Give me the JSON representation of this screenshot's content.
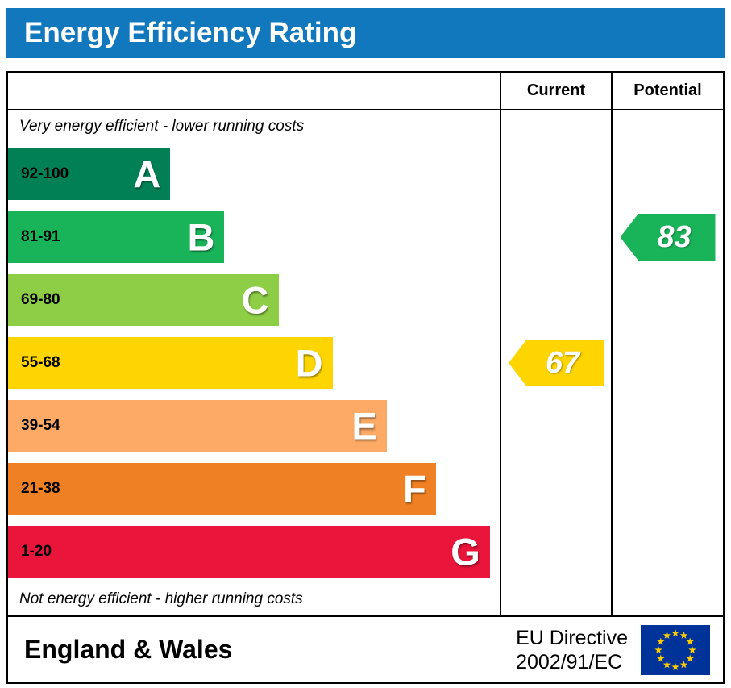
{
  "title": "Energy Efficiency Rating",
  "columns": {
    "current": "Current",
    "potential": "Potential"
  },
  "notes": {
    "top": "Very energy efficient - lower running costs",
    "bottom": "Not energy efficient - higher running costs"
  },
  "footer": {
    "region": "England & Wales",
    "directive_line1": "EU Directive",
    "directive_line2": "2002/91/EC",
    "flag_icon": "eu-flag"
  },
  "colors": {
    "header_blue": "#1278be",
    "border_black": "#000000",
    "flag_blue": "#003399",
    "star_yellow": "#ffcc00"
  },
  "chart_data": {
    "type": "bar",
    "title": "Energy Efficiency Rating",
    "bands": [
      {
        "letter": "A",
        "range": "92-100",
        "color": "#008054",
        "width_pct": 33
      },
      {
        "letter": "B",
        "range": "81-91",
        "color": "#19b459",
        "width_pct": 44
      },
      {
        "letter": "C",
        "range": "69-80",
        "color": "#8dce46",
        "width_pct": 55
      },
      {
        "letter": "D",
        "range": "55-68",
        "color": "#ffd500",
        "width_pct": 66
      },
      {
        "letter": "E",
        "range": "39-54",
        "color": "#fcaa65",
        "width_pct": 77
      },
      {
        "letter": "F",
        "range": "21-38",
        "color": "#ef8023",
        "width_pct": 87
      },
      {
        "letter": "G",
        "range": "1-20",
        "color": "#e9153b",
        "width_pct": 98
      }
    ],
    "current": {
      "value": 67,
      "band": "D",
      "color": "#ffd500"
    },
    "potential": {
      "value": 83,
      "band": "B",
      "color": "#19b459"
    }
  }
}
